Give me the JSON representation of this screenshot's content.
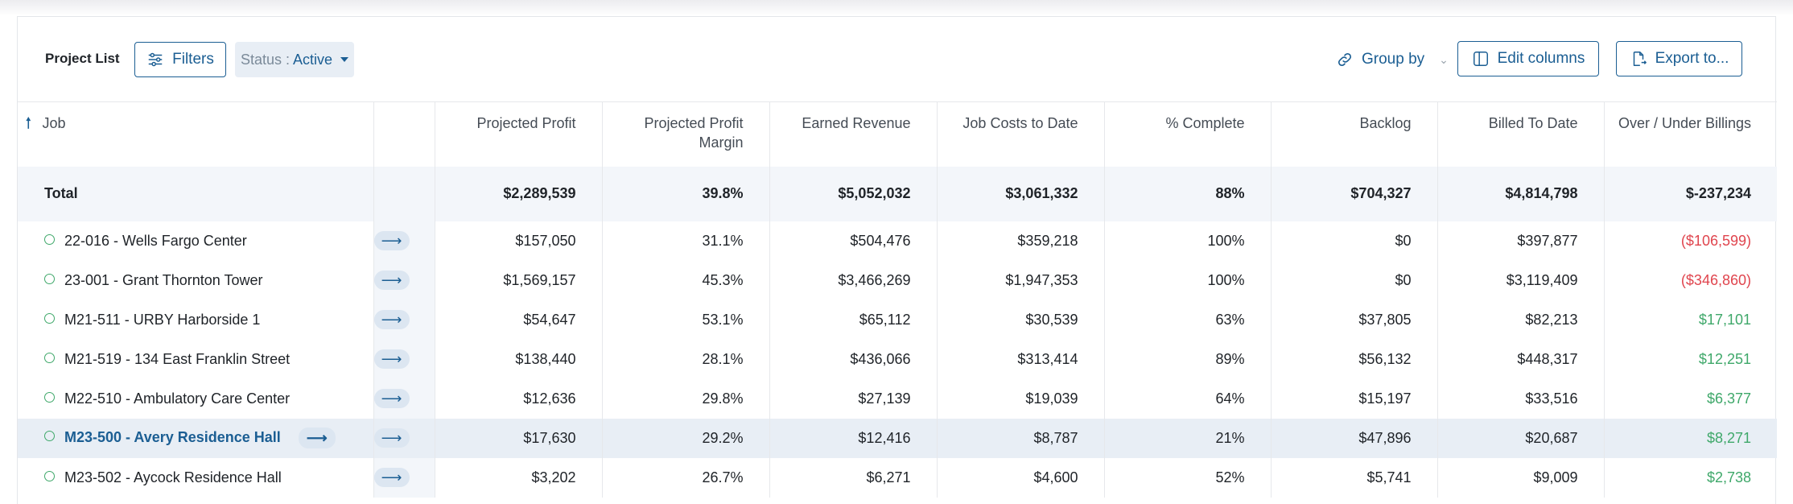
{
  "toolbar": {
    "title": "Project List",
    "filters_label": "Filters",
    "status_key": "Status : ",
    "status_value": "Active",
    "group_by_label": "Group by",
    "edit_columns_label": "Edit columns",
    "export_label": "Export to..."
  },
  "table": {
    "headers": {
      "job": "Job",
      "projected_profit": "Projected Profit",
      "projected_profit_margin": "Projected Profit Margin",
      "earned_revenue": "Earned Revenue",
      "job_costs_to_date": "Job Costs to Date",
      "pct_complete": "% Complete",
      "backlog": "Backlog",
      "billed_to_date": "Billed To Date",
      "over_under_billings": "Over / Under Billings"
    },
    "total": {
      "label": "Total",
      "projected_profit": "$2,289,539",
      "projected_profit_margin": "39.8%",
      "earned_revenue": "$5,052,032",
      "job_costs_to_date": "$3,061,332",
      "pct_complete": "88%",
      "backlog": "$704,327",
      "billed_to_date": "$4,814,798",
      "over_under_billings": "$-237,234"
    },
    "rows": [
      {
        "job": "22-016 - Wells Fargo Center",
        "projected_profit": "$157,050",
        "projected_profit_margin": "31.1%",
        "earned_revenue": "$504,476",
        "job_costs_to_date": "$359,218",
        "pct_complete": "100%",
        "backlog": "$0",
        "billed_to_date": "$397,877",
        "over_under_billings": "($106,599)"
      },
      {
        "job": "23-001 - Grant Thornton Tower",
        "projected_profit": "$1,569,157",
        "projected_profit_margin": "45.3%",
        "earned_revenue": "$3,466,269",
        "job_costs_to_date": "$1,947,353",
        "pct_complete": "100%",
        "backlog": "$0",
        "billed_to_date": "$3,119,409",
        "over_under_billings": "($346,860)"
      },
      {
        "job": "M21-511 - URBY Harborside 1",
        "projected_profit": "$54,647",
        "projected_profit_margin": "53.1%",
        "earned_revenue": "$65,112",
        "job_costs_to_date": "$30,539",
        "pct_complete": "63%",
        "backlog": "$37,805",
        "billed_to_date": "$82,213",
        "over_under_billings": "$17,101"
      },
      {
        "job": "M21-519 - 134 East Franklin Street",
        "projected_profit": "$138,440",
        "projected_profit_margin": "28.1%",
        "earned_revenue": "$436,066",
        "job_costs_to_date": "$313,414",
        "pct_complete": "89%",
        "backlog": "$56,132",
        "billed_to_date": "$448,317",
        "over_under_billings": "$12,251"
      },
      {
        "job": "M22-510 - Ambulatory Care Center",
        "projected_profit": "$12,636",
        "projected_profit_margin": "29.8%",
        "earned_revenue": "$27,139",
        "job_costs_to_date": "$19,039",
        "pct_complete": "64%",
        "backlog": "$15,197",
        "billed_to_date": "$33,516",
        "over_under_billings": "$6,377"
      },
      {
        "job": "M23-500 - Avery Residence Hall",
        "projected_profit": "$17,630",
        "projected_profit_margin": "29.2%",
        "earned_revenue": "$12,416",
        "job_costs_to_date": "$8,787",
        "pct_complete": "21%",
        "backlog": "$47,896",
        "billed_to_date": "$20,687",
        "over_under_billings": "$8,271"
      },
      {
        "job": "M23-502 - Aycock Residence Hall",
        "projected_profit": "$3,202",
        "projected_profit_margin": "26.7%",
        "earned_revenue": "$6,271",
        "job_costs_to_date": "$4,600",
        "pct_complete": "52%",
        "backlog": "$5,741",
        "billed_to_date": "$9,009",
        "over_under_billings": "$2,738"
      }
    ]
  },
  "colors": {
    "accent": "#1b5e93",
    "negative": "#e0454e",
    "positive": "#3fa86a",
    "status_dot": "#3fa86a"
  },
  "icons": {
    "filters": "sliders-icon",
    "group_by": "link-icon",
    "edit_columns": "columns-icon",
    "export": "file-export-icon",
    "row_action": "arrow-right-icon",
    "sort": "sort-ascending-icon"
  }
}
